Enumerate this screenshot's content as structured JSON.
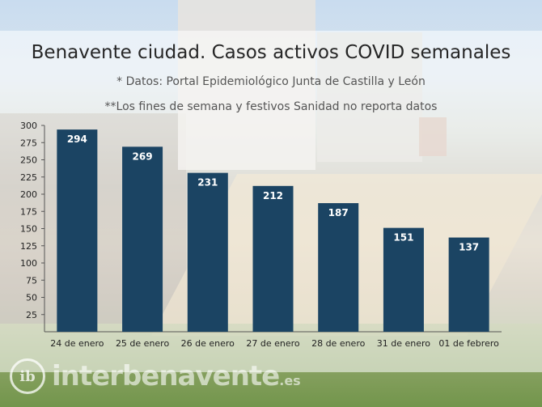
{
  "chart_data": {
    "type": "bar",
    "title": "Benavente ciudad. Casos activos COVID semanales",
    "subtitle": "* Datos: Portal Epidemiológico Junta de Castilla y León",
    "note": "**Los fines de semana y festivos Sanidad no reporta datos",
    "categories": [
      "24 de enero",
      "25 de enero",
      "26 de enero",
      "27 de enero",
      "28 de enero",
      "31 de enero",
      "01 de febrero"
    ],
    "values": [
      294,
      269,
      231,
      212,
      187,
      151,
      137
    ],
    "data_labels": [
      "294",
      "269",
      "231",
      "212",
      "187",
      "151",
      "137"
    ],
    "ylim": [
      0,
      300
    ],
    "yticks": [
      "25",
      "50",
      "75",
      "100",
      "125",
      "150",
      "175",
      "200",
      "225",
      "250",
      "275",
      "300"
    ],
    "xlabel": "",
    "ylabel": "",
    "bar_color": "#1b4463",
    "label_color": "#ffffff"
  },
  "watermark": {
    "logo_mark": "ib",
    "site_name": "interbenavente",
    "domain_suffix": ".es"
  }
}
